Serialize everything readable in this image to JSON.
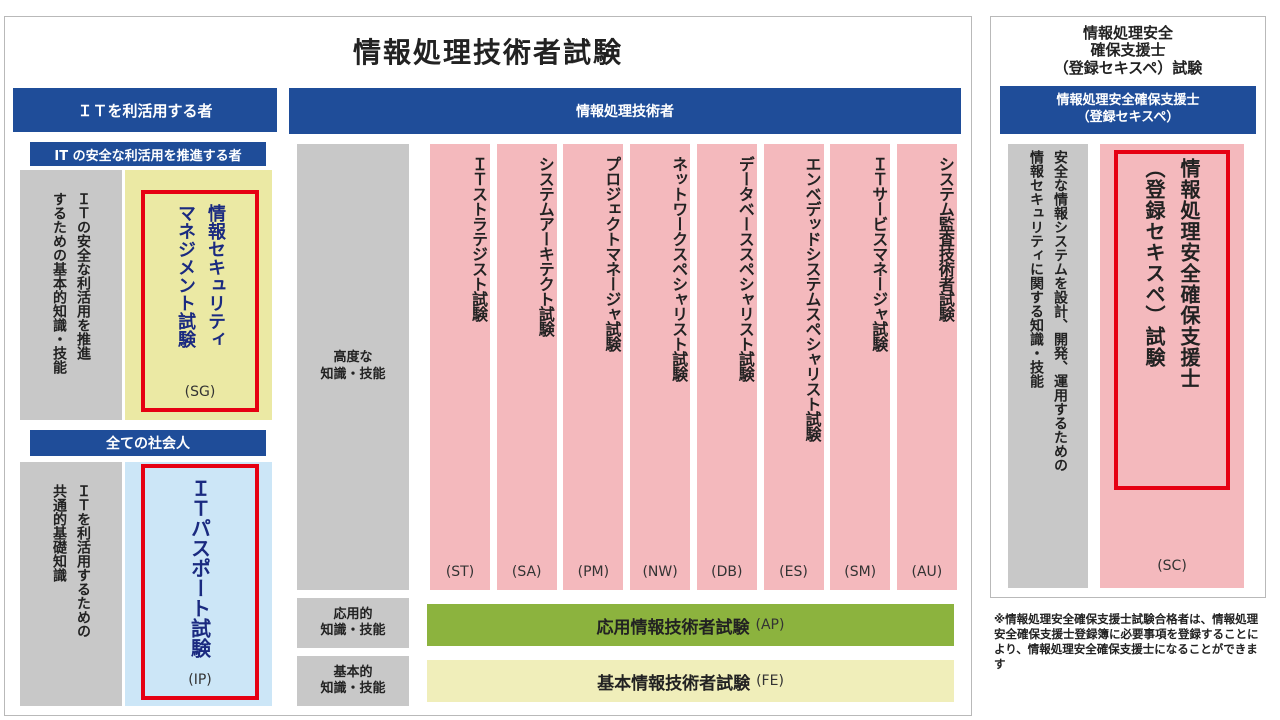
{
  "main": {
    "title": "情報処理技術者試験",
    "it_users": {
      "header": "ＩＴを利活用する者",
      "subheader": "IT の安全な利活用を推進する者",
      "sg_desc": [
        "ＩＴの安全な利活用を推進",
        "するための基本的知識・技能"
      ],
      "sg_exam": [
        "情報セキュリティ",
        "マネジメント試験"
      ],
      "sg_code": "(SG)",
      "all_header": "全ての社会人",
      "ip_desc": [
        "ＩＴを利活用するための",
        "共通的基礎知識"
      ],
      "ip_exam": "ＩＴパスポート試験",
      "ip_code": "(IP)"
    },
    "engineers": {
      "header": "情報処理技術者",
      "advanced_label": [
        "高度な",
        "知識・技能"
      ],
      "applied_label": [
        "応用的",
        "知識・技能"
      ],
      "basic_label": [
        "基本的",
        "知識・技能"
      ],
      "exams": [
        {
          "name": "ＩＴストラテジスト試験",
          "code": "(ST)"
        },
        {
          "name": "システムアーキテクト試験",
          "code": "(SA)"
        },
        {
          "name": "プロジェクトマネージャ試験",
          "code": "(PM)"
        },
        {
          "name": "ネットワークスペシャリスト試験",
          "code": "(NW)"
        },
        {
          "name": "データベーススペシャリスト試験",
          "code": "(DB)"
        },
        {
          "name": "エンベデッドシステムスペシャリスト試験",
          "code": "(ES)"
        },
        {
          "name": "ＩＴサービスマネージャ試験",
          "code": "(SM)"
        },
        {
          "name": "システム監査技術者試験",
          "code": "(AU)"
        }
      ],
      "ap_exam": "応用情報技術者試験",
      "ap_code": "(AP)",
      "fe_exam": "基本情報技術者試験",
      "fe_code": "(FE)"
    }
  },
  "side": {
    "title": [
      "情報処理安全",
      "確保支援士",
      "（登録セキスペ）試験"
    ],
    "header": [
      "情報処理安全確保支援士",
      "（登録セキスペ）"
    ],
    "desc": [
      "安全な情報システムを設計、開発、運用するための",
      "情報セキュリティに関する知識・技能"
    ],
    "exam": [
      "情報処理安全確保支援士",
      "（登録セキスペ）試験"
    ],
    "code": "(SC)",
    "note": "※情報処理安全確保支援士試験合格者は、情報処理安全確保支援士登録簿に必要事項を登録することにより、情報処理安全確保支援士になることができます"
  },
  "colors": {
    "header_blue": "#1f4d99",
    "gray_panel": "#c8c8c8",
    "sg_yellow": "#ebe9a4",
    "ip_blue": "#cce6f7",
    "exam_pink": "#f4b9bd",
    "ap_green": "#8cb33e",
    "fe_cream": "#f0eeba",
    "highlight_red": "#e60012"
  }
}
